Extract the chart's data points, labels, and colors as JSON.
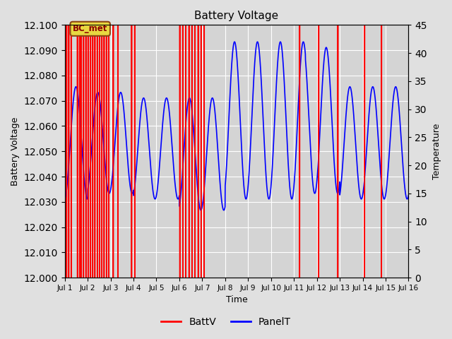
{
  "title": "Battery Voltage",
  "xlabel": "Time",
  "ylabel_left": "Battery Voltage",
  "ylabel_right": "Temperature",
  "ylim_left": [
    12.0,
    12.1
  ],
  "ylim_right": [
    0,
    45
  ],
  "yticks_left": [
    12.0,
    12.01,
    12.02,
    12.03,
    12.04,
    12.05,
    12.06,
    12.07,
    12.08,
    12.09,
    12.1
  ],
  "yticks_right": [
    0,
    5,
    10,
    15,
    20,
    25,
    30,
    35,
    40,
    45
  ],
  "xtick_labels": [
    "Jul 1",
    "Jul 2",
    "Jul 3",
    "Jul 4",
    "Jul 5",
    "Jul 6",
    "Jul 7",
    "Jul 8",
    "Jul 9",
    "Jul 10",
    "Jul 11",
    "Jul 12",
    "Jul 13",
    "Jul 14",
    "Jul 15",
    "Jul 16"
  ],
  "xlim": [
    0,
    15
  ],
  "fig_facecolor": "#e0e0e0",
  "plot_facecolor": "#d4d4d4",
  "grid_color": "#ffffff",
  "annotation_text": "BC_met",
  "batt_color": "#ff0000",
  "panel_color": "#0000ff",
  "legend_batt": "BattV",
  "legend_panel": "PanelT",
  "red_line_positions": [
    0.08,
    0.18,
    0.28,
    0.55,
    0.65,
    0.72,
    0.82,
    0.92,
    1.02,
    1.12,
    1.22,
    1.32,
    1.42,
    1.52,
    1.62,
    1.72,
    1.82,
    1.92,
    2.12,
    2.32,
    2.92,
    3.05,
    5.02,
    5.15,
    5.28,
    5.42,
    5.55,
    5.68,
    5.82,
    5.95,
    6.08,
    10.25,
    11.08,
    11.92,
    13.08,
    13.82
  ],
  "temp_keypoints_x": [
    0,
    0.3,
    0.7,
    1.2,
    1.7,
    2.2,
    2.7,
    3.2,
    3.7,
    4.2,
    4.7,
    5.2,
    5.7,
    6.2,
    6.7,
    7.2,
    7.7,
    8.2,
    8.7,
    9.2,
    9.7,
    10.2,
    10.7,
    11.2,
    11.7,
    12.2,
    12.7,
    13.2,
    13.7,
    14.2,
    14.7,
    15.0
  ],
  "temp_keypoints_y": [
    15,
    14,
    32,
    33,
    15,
    32,
    15,
    31,
    28,
    15,
    30,
    15,
    30,
    15,
    33,
    10,
    34,
    15,
    35,
    15,
    42,
    15,
    42,
    40,
    15,
    33,
    15,
    32,
    30,
    14,
    31,
    13
  ]
}
